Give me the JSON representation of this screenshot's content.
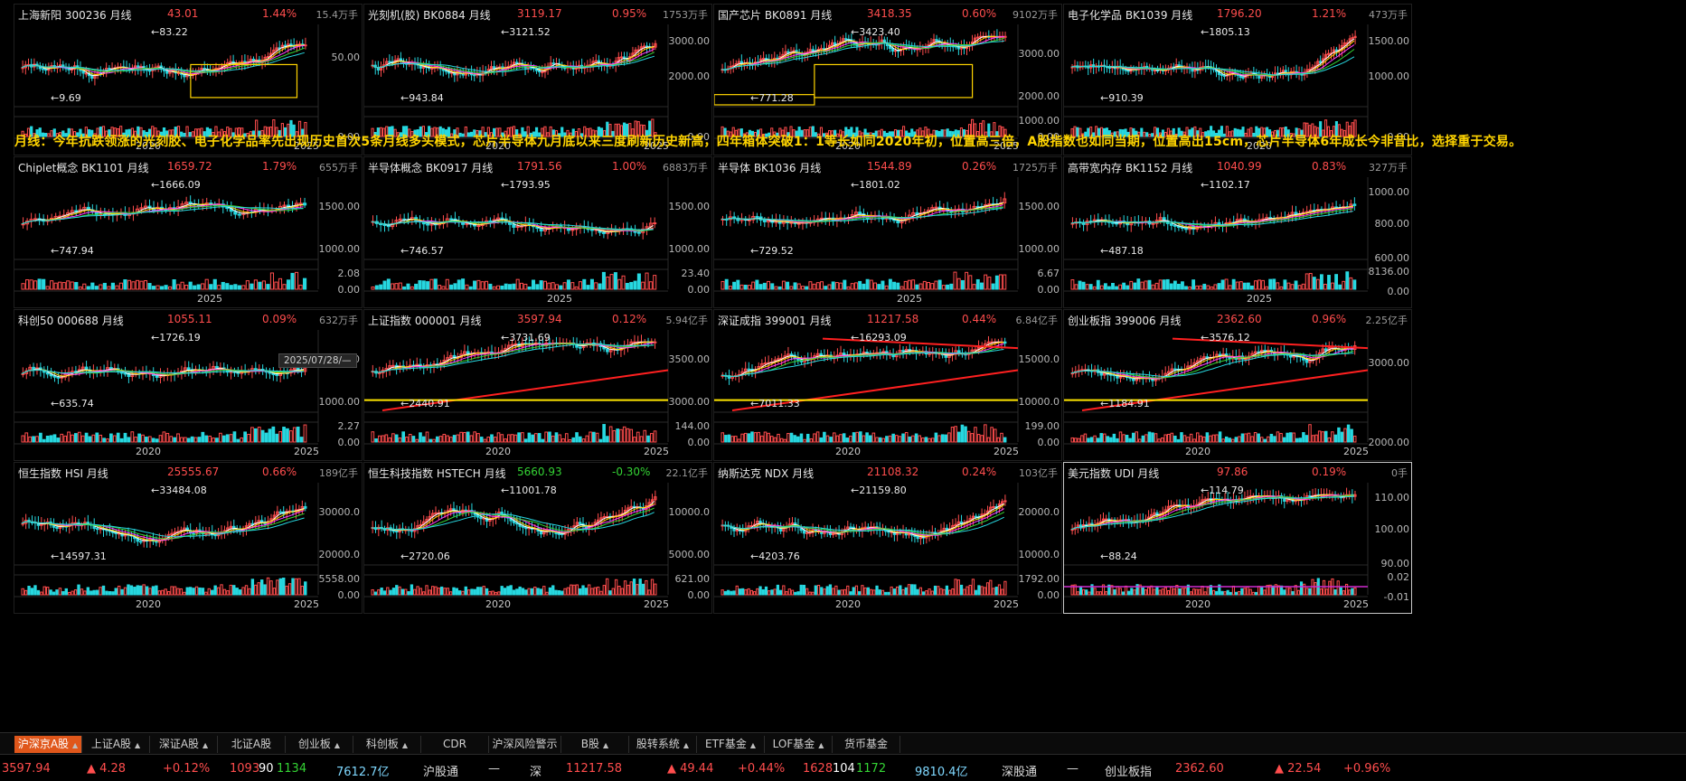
{
  "banner": "月线：今年抗跌领涨的光刻胶、电子化学品率先出现历史首次5条月线多头模式，芯片半导体九月底以来三度刷新历史新高，四年箱体突破1：1等长如同2020年初，位置高三倍，A股指数也如同当期，位置高出15cm，芯片半导体6年成长今非昔比，选择重于交易。",
  "date_tag": "2025/07/28/—",
  "colors": {
    "up": "#ff4d4d",
    "down": "#34d334",
    "accent": "#e0571b",
    "banner": "#ffd400",
    "box": "#ffd400"
  },
  "panels": [
    {
      "title": "上海新阳 300236 月线",
      "price": "43.01",
      "pct": "1.44%",
      "pct_dir": "up",
      "vol": "15.4万手",
      "ylabels": [
        "50.00",
        "0.00"
      ],
      "xlabels": [
        "2020",
        "2025"
      ],
      "annotations": [
        "83.22",
        "9.69"
      ],
      "box": true
    },
    {
      "title": "光刻机(胶) BK0884 月线",
      "price": "3119.17",
      "pct": "0.95%",
      "pct_dir": "up",
      "vol": "1753万手",
      "ylabels": [
        "3000.00",
        "2000.00",
        "0.00"
      ],
      "xlabels": [
        "2020",
        "2025"
      ],
      "annotations": [
        "3121.52",
        "943.84"
      ],
      "box": false
    },
    {
      "title": "国产芯片 BK0891 月线",
      "price": "3418.35",
      "pct": "0.60%",
      "pct_dir": "up",
      "vol": "9102万手",
      "ylabels": [
        "3000.00",
        "2000.00",
        "1000.00",
        "0.00"
      ],
      "xlabels": [
        "2020",
        "2025"
      ],
      "annotations": [
        "3423.40",
        "771.28"
      ],
      "box": true
    },
    {
      "title": "电子化学品 BK1039 月线",
      "price": "1796.20",
      "pct": "1.21%",
      "pct_dir": "up",
      "vol": "473万手",
      "ylabels": [
        "1500.00",
        "1000.00",
        "0.00"
      ],
      "xlabels": [
        "2020"
      ],
      "annotations": [
        "1805.13",
        "910.39"
      ],
      "box": false
    },
    {
      "title": "Chiplet概念 BK1101 月线",
      "price": "1659.72",
      "pct": "1.79%",
      "pct_dir": "up",
      "vol": "655万手",
      "ylabels": [
        "1500.00",
        "1000.00",
        "2.08",
        "0.00"
      ],
      "xlabels": [
        "2025"
      ],
      "annotations": [
        "1666.09",
        "747.94"
      ],
      "box": false
    },
    {
      "title": "半导体概念 BK0917 月线",
      "price": "1791.56",
      "pct": "1.00%",
      "pct_dir": "up",
      "vol": "6883万手",
      "ylabels": [
        "1500.00",
        "1000.00",
        "23.40",
        "0.00"
      ],
      "xlabels": [
        "2025"
      ],
      "annotations": [
        "1793.95",
        "746.57"
      ],
      "box": false
    },
    {
      "title": "半导体 BK1036 月线",
      "price": "1544.89",
      "pct": "0.26%",
      "pct_dir": "up",
      "vol": "1725万手",
      "ylabels": [
        "1500.00",
        "1000.00",
        "6.67",
        "0.00"
      ],
      "xlabels": [
        "2025"
      ],
      "annotations": [
        "1801.02",
        "729.52"
      ],
      "box": false
    },
    {
      "title": "高带宽内存 BK1152 月线",
      "price": "1040.99",
      "pct": "0.83%",
      "pct_dir": "up",
      "vol": "327万手",
      "ylabels": [
        "1000.00",
        "800.00",
        "600.00",
        "8136.00",
        "0.00"
      ],
      "xlabels": [
        "2025"
      ],
      "annotations": [
        "1102.17",
        "487.18"
      ],
      "box": false
    },
    {
      "title": "科创50 000688 月线",
      "price": "1055.11",
      "pct": "0.09%",
      "pct_dir": "up",
      "vol": "632万手",
      "ylabels": [
        "1500.00",
        "1000.00",
        "2.27",
        "0.00"
      ],
      "xlabels": [
        "2020",
        "2025"
      ],
      "annotations": [
        "1726.19",
        "635.74"
      ],
      "box": false
    },
    {
      "title": "上证指数 000001 月线",
      "price": "3597.94",
      "pct": "0.12%",
      "pct_dir": "up",
      "vol": "5.94亿手",
      "ylabels": [
        "3500.00",
        "3000.00",
        "144.00",
        "0.00"
      ],
      "xlabels": [
        "2020",
        "2025"
      ],
      "annotations": [
        "3731.69",
        "2440.91"
      ],
      "box": false
    },
    {
      "title": "深证成指 399001 月线",
      "price": "11217.58",
      "pct": "0.44%",
      "pct_dir": "up",
      "vol": "6.84亿手",
      "ylabels": [
        "15000.0",
        "10000.0",
        "199.00",
        "0.00"
      ],
      "xlabels": [
        "2020",
        "2025"
      ],
      "annotations": [
        "16293.09",
        "7011.33"
      ],
      "box": false
    },
    {
      "title": "创业板指 399006 月线",
      "price": "2362.60",
      "pct": "0.96%",
      "pct_dir": "up",
      "vol": "2.25亿手",
      "ylabels": [
        "3000.00",
        "2000.00"
      ],
      "xlabels": [
        "2020",
        "2025"
      ],
      "annotations": [
        "3576.12",
        "1184.91"
      ],
      "box": false
    },
    {
      "title": "恒生指数 HSI 月线",
      "price": "25555.67",
      "pct": "0.66%",
      "pct_dir": "up",
      "vol": "189亿手",
      "ylabels": [
        "30000.0",
        "20000.0",
        "5558.00",
        "0.00"
      ],
      "xlabels": [
        "2020",
        "2025"
      ],
      "annotations": [
        "33484.08",
        "14597.31"
      ],
      "box": false
    },
    {
      "title": "恒生科技指数 HSTECH 月线",
      "price": "5660.93",
      "pct": "-0.30%",
      "pct_dir": "down",
      "vol": "22.1亿手",
      "ylabels": [
        "10000.0",
        "5000.00",
        "621.00",
        "0.00"
      ],
      "xlabels": [
        "2020",
        "2025"
      ],
      "annotations": [
        "11001.78",
        "2720.06"
      ],
      "box": false
    },
    {
      "title": "纳斯达克 NDX 月线",
      "price": "21108.32",
      "pct": "0.24%",
      "pct_dir": "up",
      "vol": "103亿手",
      "ylabels": [
        "20000.0",
        "10000.0",
        "1792.00",
        "0.00"
      ],
      "xlabels": [
        "2020",
        "2025"
      ],
      "annotations": [
        "21159.80",
        "4203.76"
      ],
      "box": false
    },
    {
      "title": "美元指数 UDI 月线",
      "price": "97.86",
      "pct": "0.19%",
      "pct_dir": "up",
      "vol": "0手",
      "ylabels": [
        "110.00",
        "100.00",
        "90.00",
        "0.02",
        "-0.01"
      ],
      "xlabels": [
        "2020",
        "2025"
      ],
      "annotations": [
        "114.79",
        "88.24"
      ],
      "box": false
    }
  ],
  "tabs": [
    {
      "label": "沪深京A股",
      "caret": "▲",
      "active": true
    },
    {
      "label": "上证A股",
      "caret": "▲",
      "active": false
    },
    {
      "label": "深证A股",
      "caret": "▲",
      "active": false
    },
    {
      "label": "北证A股",
      "caret": "",
      "active": false
    },
    {
      "label": "创业板",
      "caret": "▲",
      "active": false
    },
    {
      "label": "科创板",
      "caret": "▲",
      "active": false
    },
    {
      "label": "CDR",
      "caret": "",
      "active": false
    },
    {
      "label": "沪深风险警示",
      "caret": "▲",
      "active": false
    },
    {
      "label": "B股",
      "caret": "▲",
      "active": false
    },
    {
      "label": "股转系统",
      "caret": "▲",
      "active": false
    },
    {
      "label": "ETF基金",
      "caret": "▲",
      "active": false
    },
    {
      "label": "LOF基金",
      "caret": "▲",
      "active": false
    },
    {
      "label": "货币基金",
      "caret": "",
      "active": false
    }
  ],
  "status": {
    "sh_price": "3597.94",
    "sh_change": "▲ 4.28",
    "sh_pct": "+0.12%",
    "sh_up": "1093",
    "sh_flat": "90",
    "sh_down": "1134",
    "sh_amount": "7612.7亿",
    "hgt_label": "沪股通",
    "hgt_value": "—",
    "sz_label": "深",
    "sz_price": "11217.58",
    "sz_change": "▲ 49.44",
    "sz_pct": "+0.44%",
    "sz_up": "1628",
    "sz_flat": "104",
    "sz_down": "1172",
    "sz_amount": "9810.4亿",
    "sgt_label": "深股通",
    "sgt_value": "—",
    "cy_label": "创业板指",
    "cy_price": "2362.60",
    "cy_change": "▲ 22.54",
    "cy_pct": "+0.96%"
  }
}
